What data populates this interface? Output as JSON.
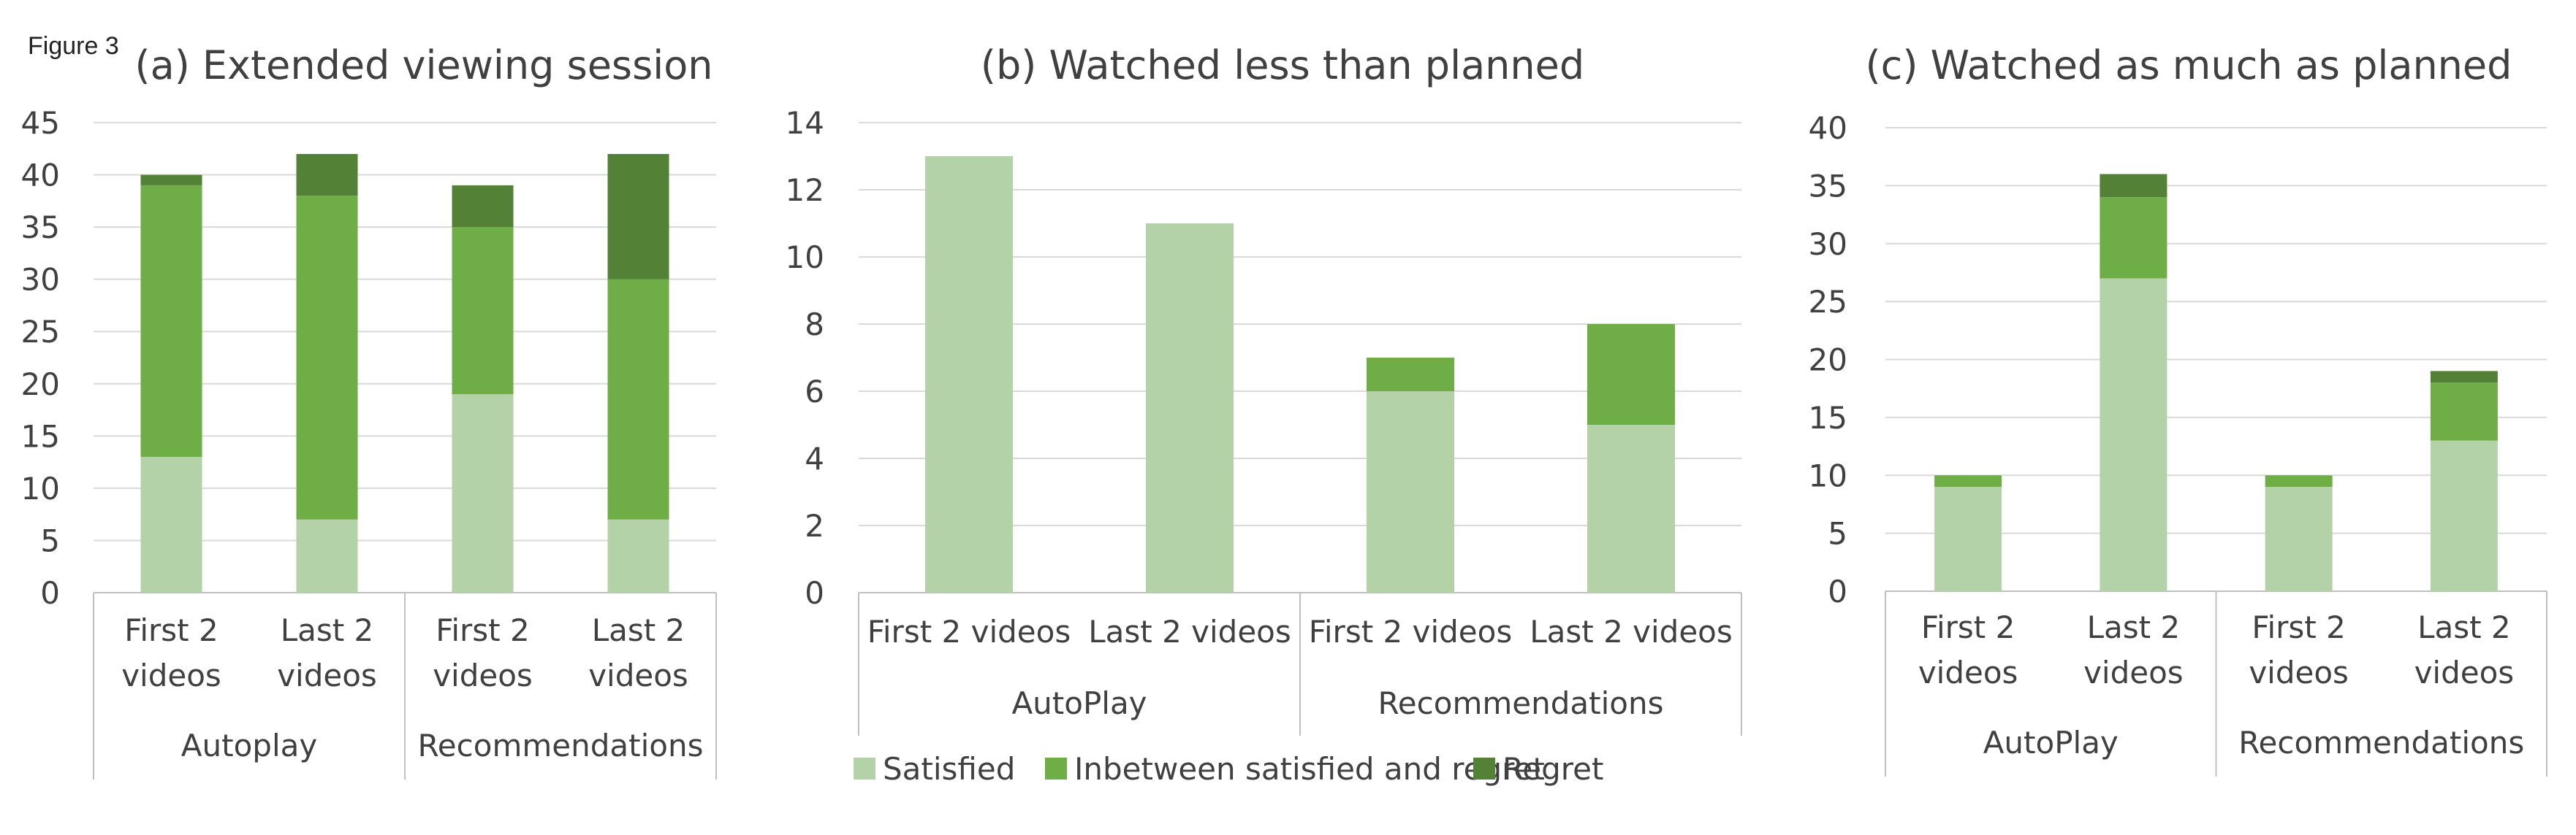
{
  "figure_label": "Figure 3",
  "legend": [
    {
      "label": "Satisfied",
      "color": "#b4d2a7"
    },
    {
      "label": "Inbetween satisfied and regret",
      "color": "#6fad47"
    },
    {
      "label": "Regret",
      "color": "#538135"
    }
  ],
  "chart_data": [
    {
      "type": "bar",
      "stacked": true,
      "title": "(a) Extended viewing session",
      "categories": [
        [
          "First 2",
          "videos"
        ],
        [
          "Last 2",
          "videos"
        ],
        [
          "First 2",
          "videos"
        ],
        [
          "Last 2",
          "videos"
        ]
      ],
      "groups": [
        {
          "label": "Autoplay",
          "span": 2
        },
        {
          "label": "Recommendations",
          "span": 2
        }
      ],
      "series": [
        {
          "name": "Satisfied",
          "values": [
            13,
            7,
            19,
            7
          ]
        },
        {
          "name": "Inbetween satisfied and regret",
          "values": [
            26,
            31,
            16,
            23
          ]
        },
        {
          "name": "Regret",
          "values": [
            1,
            4,
            4,
            12
          ]
        }
      ],
      "ylim": [
        0,
        45
      ],
      "yticks": [
        0,
        5,
        10,
        15,
        20,
        25,
        30,
        35,
        40,
        45
      ],
      "grid": true
    },
    {
      "type": "bar",
      "stacked": true,
      "title": "(b) Watched less than planned",
      "categories": [
        [
          "First 2 videos"
        ],
        [
          "Last 2 videos"
        ],
        [
          "First 2 videos"
        ],
        [
          "Last 2 videos"
        ]
      ],
      "groups": [
        {
          "label": "AutoPlay",
          "span": 2
        },
        {
          "label": "Recommendations",
          "span": 2
        }
      ],
      "series": [
        {
          "name": "Satisfied",
          "values": [
            13,
            11,
            6,
            5
          ]
        },
        {
          "name": "Inbetween satisfied and regret",
          "values": [
            0,
            0,
            1,
            3
          ]
        },
        {
          "name": "Regret",
          "values": [
            0,
            0,
            0,
            0
          ]
        }
      ],
      "ylim": [
        0,
        14
      ],
      "yticks": [
        0,
        2,
        4,
        6,
        8,
        10,
        12,
        14
      ],
      "grid": true,
      "legend_position": "bottom"
    },
    {
      "type": "bar",
      "stacked": true,
      "title": "(c) Watched as much as planned",
      "categories": [
        [
          "First 2",
          "videos"
        ],
        [
          "Last 2",
          "videos"
        ],
        [
          "First 2",
          "videos"
        ],
        [
          "Last 2",
          "videos"
        ]
      ],
      "groups": [
        {
          "label": "AutoPlay",
          "span": 2
        },
        {
          "label": "Recommendations",
          "span": 2
        }
      ],
      "series": [
        {
          "name": "Satisfied",
          "values": [
            9,
            27,
            9,
            13
          ]
        },
        {
          "name": "Inbetween satisfied and regret",
          "values": [
            1,
            7,
            1,
            5
          ]
        },
        {
          "name": "Regret",
          "values": [
            0,
            2,
            0,
            1
          ]
        }
      ],
      "ylim": [
        0,
        40
      ],
      "yticks": [
        0,
        5,
        10,
        15,
        20,
        25,
        30,
        35,
        40
      ],
      "grid": true
    }
  ]
}
